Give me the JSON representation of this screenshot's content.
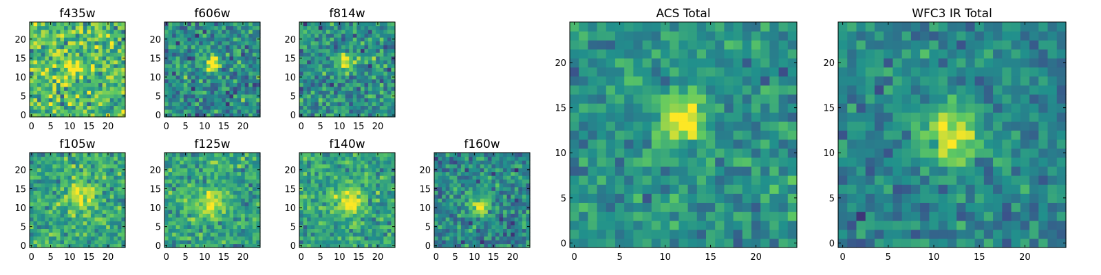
{
  "chart_data": [
    {
      "type": "heatmap",
      "title": "f435w",
      "xticks": [
        0,
        5,
        10,
        15,
        20
      ],
      "yticks": [
        0,
        5,
        10,
        15,
        20
      ],
      "size": 25,
      "xlim": [
        -0.5,
        24.5
      ],
      "ylim": [
        -0.5,
        24.5
      ],
      "source": {
        "center": [
          10.5,
          13
        ],
        "peak": 0.5,
        "sigma": 1.6,
        "noise": 0.23,
        "base": 0.68,
        "seed": 435
      }
    },
    {
      "type": "heatmap",
      "title": "f606w",
      "xticks": [
        0,
        5,
        10,
        15,
        20
      ],
      "yticks": [
        0,
        5,
        10,
        15,
        20
      ],
      "size": 25,
      "xlim": [
        -0.5,
        24.5
      ],
      "ylim": [
        -0.5,
        24.5
      ],
      "source": {
        "center": [
          12,
          13.5
        ],
        "peak": 0.65,
        "sigma": 1.5,
        "noise": 0.2,
        "base": 0.48,
        "seed": 606
      }
    },
    {
      "type": "heatmap",
      "title": "f814w",
      "xticks": [
        0,
        5,
        10,
        15,
        20
      ],
      "yticks": [
        0,
        5,
        10,
        15,
        20
      ],
      "size": 25,
      "xlim": [
        -0.5,
        24.5
      ],
      "ylim": [
        -0.5,
        24.5
      ],
      "source": {
        "center": [
          11.5,
          13.5
        ],
        "peak": 0.6,
        "sigma": 1.5,
        "noise": 0.2,
        "base": 0.5,
        "seed": 814
      }
    },
    {
      "type": "heatmap",
      "title": "f105w",
      "xticks": [
        0,
        5,
        10,
        15,
        20
      ],
      "yticks": [
        0,
        5,
        10,
        15,
        20
      ],
      "size": 25,
      "xlim": [
        -0.5,
        24.5
      ],
      "ylim": [
        -0.5,
        24.5
      ],
      "source": {
        "center": [
          13,
          13
        ],
        "peak": 0.35,
        "sigma": 2.6,
        "noise": 0.17,
        "base": 0.6,
        "seed": 105
      }
    },
    {
      "type": "heatmap",
      "title": "f125w",
      "xticks": [
        0,
        5,
        10,
        15,
        20
      ],
      "yticks": [
        0,
        5,
        10,
        15,
        20
      ],
      "size": 25,
      "xlim": [
        -0.5,
        24.5
      ],
      "ylim": [
        -0.5,
        24.5
      ],
      "source": {
        "center": [
          11.5,
          11.5
        ],
        "peak": 0.35,
        "sigma": 3.0,
        "noise": 0.17,
        "base": 0.58,
        "seed": 125
      }
    },
    {
      "type": "heatmap",
      "title": "f140w",
      "xticks": [
        0,
        5,
        10,
        15,
        20
      ],
      "yticks": [
        0,
        5,
        10,
        15,
        20
      ],
      "size": 25,
      "xlim": [
        -0.5,
        24.5
      ],
      "ylim": [
        -0.5,
        24.5
      ],
      "source": {
        "center": [
          12.5,
          12
        ],
        "peak": 0.45,
        "sigma": 2.6,
        "noise": 0.16,
        "base": 0.58,
        "seed": 140
      }
    },
    {
      "type": "heatmap",
      "title": "f160w",
      "xticks": [
        0,
        5,
        10,
        15,
        20
      ],
      "yticks": [
        0,
        5,
        10,
        15,
        20
      ],
      "size": 25,
      "xlim": [
        -0.5,
        24.5
      ],
      "ylim": [
        -0.5,
        24.5
      ],
      "source": {
        "center": [
          11.5,
          11
        ],
        "peak": 0.5,
        "sigma": 2.2,
        "noise": 0.18,
        "base": 0.45,
        "seed": 160
      }
    },
    {
      "type": "heatmap",
      "title": "ACS Total",
      "xticks": [
        0,
        5,
        10,
        15,
        20
      ],
      "yticks": [
        0,
        5,
        10,
        15,
        20
      ],
      "size": 25,
      "xlim": [
        -0.5,
        24.5
      ],
      "ylim": [
        -0.5,
        24.5
      ],
      "source": {
        "center": [
          12,
          14
        ],
        "peak": 0.55,
        "sigma": 1.8,
        "noise": 0.14,
        "base": 0.5,
        "seed": 901
      }
    },
    {
      "type": "heatmap",
      "title": "WFC3 IR Total",
      "xticks": [
        0,
        5,
        10,
        15,
        20
      ],
      "yticks": [
        0,
        5,
        10,
        15,
        20
      ],
      "size": 25,
      "xlim": [
        -0.5,
        24.5
      ],
      "ylim": [
        -0.5,
        24.5
      ],
      "source": {
        "center": [
          12,
          12
        ],
        "peak": 0.5,
        "sigma": 2.4,
        "noise": 0.14,
        "base": 0.45,
        "seed": 902
      }
    }
  ],
  "colormap": [
    "#440154",
    "#3b528b",
    "#21918c",
    "#5ec962",
    "#fde725"
  ]
}
